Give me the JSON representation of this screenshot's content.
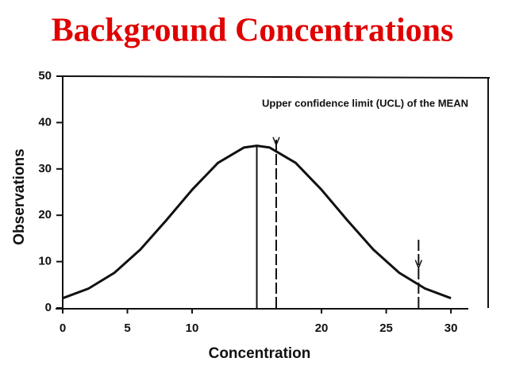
{
  "chart_data": {
    "type": "line",
    "title": "Background Concentrations",
    "x_label": "Concentration",
    "y_label": "Observations",
    "annotation": "Upper confidence limit (UCL) of the MEAN",
    "x": [
      0,
      2,
      4,
      6,
      8,
      10,
      12,
      14,
      15,
      16,
      18,
      20,
      22,
      24,
      26,
      28,
      30
    ],
    "series": [
      {
        "color": "#111111",
        "values": [
          2.1,
          4.2,
          7.6,
          12.6,
          18.9,
          25.5,
          31.3,
          34.6,
          35,
          34.6,
          31.3,
          25.5,
          18.9,
          12.6,
          7.6,
          4.2,
          2.1
        ]
      }
    ],
    "vlines": [
      {
        "x": 15,
        "y": 35,
        "style": "solid"
      },
      {
        "x": 16.5,
        "y": 37,
        "style": "dashed"
      },
      {
        "x": 27.5,
        "y": 15,
        "style": "dashed"
      }
    ],
    "xlim": [
      0,
      33
    ],
    "xticks": [
      0,
      5,
      10,
      20,
      25,
      30
    ],
    "ylim": [
      0,
      50
    ],
    "yticks": [
      0,
      10,
      20,
      30,
      40,
      50
    ]
  }
}
